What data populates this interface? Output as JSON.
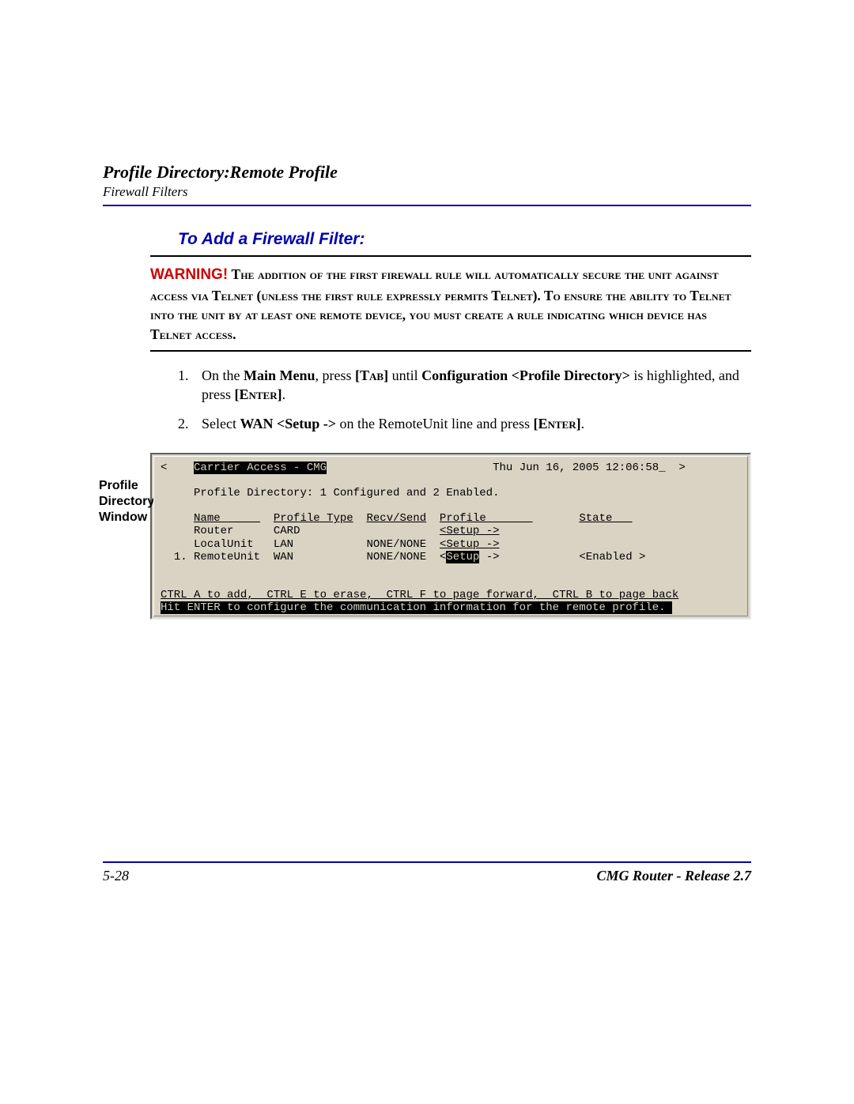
{
  "header": {
    "title": "Profile Directory:Remote Profile",
    "subtitle": "Firewall Filters"
  },
  "section_title": "To Add a Firewall Filter:",
  "warning": {
    "label": "WARNING!",
    "text_parts": {
      "p1": "The addition of the first firewall rule will automatically secure the unit against access via Telnet (unless the first rule expressly permits Telnet). To ensure the ability to Telnet into the unit by at least one remote device, you must create a rule indicating which device has Telnet access."
    }
  },
  "steps": [
    {
      "num": "1.",
      "pre": "On the ",
      "b1": "Main Menu",
      "mid1": ", press ",
      "key1": "[Tab]",
      "mid2": " until ",
      "b2": "Configuration <Profile Directory>",
      "mid3": " is highlighted, and press ",
      "key2": "[Enter]",
      "post": "."
    },
    {
      "num": "2.",
      "pre": "Select ",
      "b1": "WAN <Setup ->",
      "mid1": " on the RemoteUnit line and press ",
      "key1": "[Enter]",
      "post": "."
    }
  ],
  "sidebar_label": "Profile Directory Window",
  "terminal": {
    "top_left_bracket": "<",
    "title": "Carrier Access - CMG",
    "timestamp": "Thu Jun 16, 2005 12:06:58_",
    "top_right_bracket": ">",
    "status_line": "Profile Directory: 1 Configured and 2 Enabled.",
    "headers": {
      "name": "Name      ",
      "ptype": "Profile Type",
      "recv": "Recv/Send",
      "profile": "Profile       ",
      "state": "State   "
    },
    "rows": [
      {
        "idx": "   ",
        "name": "Router    ",
        "ptype": "CARD",
        "recv": "         ",
        "setup": "<Setup ->",
        "state": ""
      },
      {
        "idx": "   ",
        "name": "LocalUnit ",
        "ptype": "LAN ",
        "recv": "NONE/NONE",
        "setup": "<Setup ->",
        "state": ""
      },
      {
        "idx": "1. ",
        "name": "RemoteUnit",
        "ptype": "WAN ",
        "recv": "NONE/NONE",
        "setup_pre": "<",
        "setup_sel": "Setup",
        "setup_post": " ->",
        "state": "<Enabled >"
      }
    ],
    "help1": "CTRL A to add,  CTRL E to erase,  CTRL F to page forward,  CTRL B to page back",
    "help2": "Hit ENTER to configure the communication information for the remote profile. "
  },
  "footer": {
    "page": "5-28",
    "product": "CMG Router - Release 2.7"
  },
  "colors": {
    "blue": "#0000b0",
    "red": "#d00000",
    "terminal_bg": "#d9d3c3"
  }
}
